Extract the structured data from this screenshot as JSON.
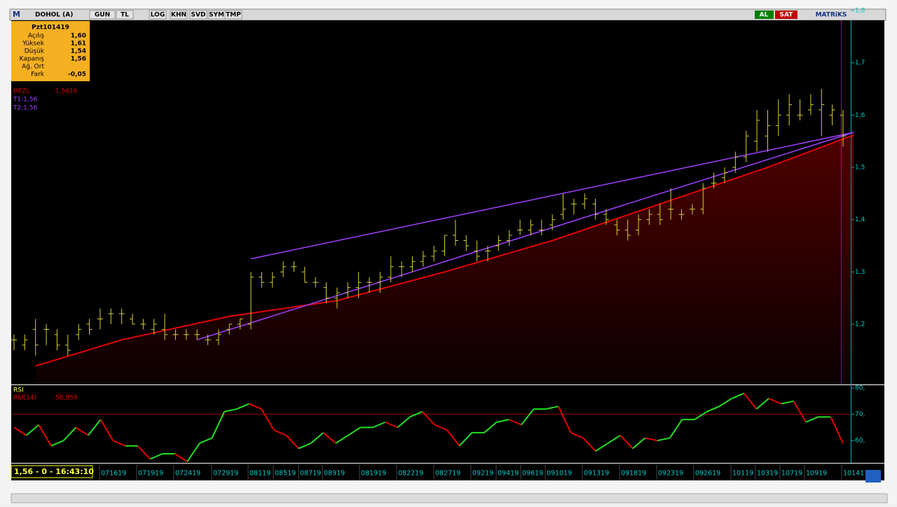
{
  "toolbar": {
    "logo": "M",
    "symbol": "DOHOL (A)",
    "buttons": [
      "GUN",
      "TL",
      "LOG",
      "KHN",
      "SVD",
      "SYM",
      "TMP"
    ],
    "buy": "AL",
    "sell": "SAT",
    "brand": "MATRiKS"
  },
  "info_panel": {
    "title": "Pzt101419",
    "rows": [
      {
        "label": "Açılış",
        "value": "1,60"
      },
      {
        "label": "Yüksek",
        "value": "1,61"
      },
      {
        "label": "Düşük",
        "value": "1,54"
      },
      {
        "label": "Kapanış",
        "value": "1,56"
      },
      {
        "label": "Ağ. Ort"
      },
      {
        "label": "Fark",
        "value": "-0,05"
      }
    ]
  },
  "status": "1,56 - 0 - 16:43:10",
  "chart_data": [
    {
      "type": "ohlc",
      "color": "#d8d030",
      "legend": [
        {
          "text": "HEZL",
          "readout": ":1,5616",
          "color": "#e00000"
        },
        {
          "text": "T1:1,56",
          "color": "#a040ff"
        },
        {
          "text": "T2:1,56",
          "color": "#a040ff"
        }
      ],
      "x_labels": [
        "071619",
        "071919",
        "072419",
        "072919",
        "08119",
        "08519",
        "08719",
        "08919",
        "081919",
        "082219",
        "082719",
        "09219",
        "09419",
        "09619",
        "091019",
        "091319",
        "091819",
        "092319",
        "092619",
        "10119",
        "10319",
        "10719",
        "10919",
        "10141"
      ],
      "xlim": [
        0,
        78
      ],
      "open": [
        1.17,
        1.16,
        1.19,
        1.19,
        1.18,
        1.16,
        1.18,
        1.2,
        1.21,
        1.22,
        1.22,
        1.21,
        1.2,
        1.19,
        1.19,
        1.18,
        1.18,
        1.18,
        1.17,
        1.17,
        1.19,
        1.2,
        1.2,
        1.29,
        1.28,
        1.3,
        1.31,
        1.3,
        1.28,
        1.27,
        1.25,
        1.26,
        1.27,
        1.28,
        1.28,
        1.29,
        1.31,
        1.31,
        1.32,
        1.33,
        1.34,
        1.37,
        1.36,
        1.34,
        1.34,
        1.35,
        1.36,
        1.38,
        1.38,
        1.38,
        1.39,
        1.41,
        1.43,
        1.43,
        1.43,
        1.41,
        1.39,
        1.38,
        1.38,
        1.4,
        1.41,
        1.42,
        1.41,
        1.42,
        1.42,
        1.47,
        1.48,
        1.5,
        1.52,
        1.55,
        1.56,
        1.58,
        1.6,
        1.6,
        1.61,
        1.61,
        1.6,
        1.6
      ],
      "high": [
        1.18,
        1.18,
        1.21,
        1.2,
        1.19,
        1.18,
        1.2,
        1.21,
        1.23,
        1.23,
        1.23,
        1.22,
        1.21,
        1.21,
        1.22,
        1.19,
        1.19,
        1.19,
        1.18,
        1.19,
        1.2,
        1.21,
        1.3,
        1.3,
        1.3,
        1.32,
        1.32,
        1.31,
        1.29,
        1.28,
        1.27,
        1.28,
        1.3,
        1.29,
        1.3,
        1.33,
        1.32,
        1.33,
        1.34,
        1.35,
        1.37,
        1.4,
        1.37,
        1.36,
        1.35,
        1.37,
        1.38,
        1.4,
        1.4,
        1.4,
        1.41,
        1.45,
        1.44,
        1.45,
        1.44,
        1.42,
        1.4,
        1.4,
        1.41,
        1.42,
        1.43,
        1.46,
        1.42,
        1.43,
        1.47,
        1.49,
        1.5,
        1.53,
        1.57,
        1.61,
        1.61,
        1.63,
        1.64,
        1.63,
        1.64,
        1.65,
        1.62,
        1.61
      ],
      "low": [
        1.15,
        1.15,
        1.14,
        1.16,
        1.15,
        1.14,
        1.17,
        1.18,
        1.19,
        1.2,
        1.2,
        1.2,
        1.19,
        1.18,
        1.17,
        1.17,
        1.17,
        1.17,
        1.16,
        1.16,
        1.18,
        1.19,
        1.19,
        1.27,
        1.27,
        1.29,
        1.3,
        1.28,
        1.27,
        1.24,
        1.23,
        1.25,
        1.25,
        1.26,
        1.26,
        1.28,
        1.29,
        1.3,
        1.31,
        1.32,
        1.33,
        1.35,
        1.34,
        1.32,
        1.32,
        1.34,
        1.35,
        1.37,
        1.37,
        1.37,
        1.38,
        1.4,
        1.41,
        1.42,
        1.4,
        1.39,
        1.37,
        1.36,
        1.37,
        1.39,
        1.39,
        1.4,
        1.4,
        1.41,
        1.41,
        1.46,
        1.47,
        1.49,
        1.51,
        1.53,
        1.53,
        1.56,
        1.58,
        1.59,
        1.6,
        1.56,
        1.58,
        1.54
      ],
      "close": [
        1.17,
        1.17,
        1.16,
        1.19,
        1.16,
        1.15,
        1.19,
        1.19,
        1.21,
        1.22,
        1.22,
        1.2,
        1.2,
        1.2,
        1.18,
        1.18,
        1.18,
        1.18,
        1.17,
        1.18,
        1.2,
        1.21,
        1.29,
        1.28,
        1.29,
        1.31,
        1.31,
        1.28,
        1.28,
        1.25,
        1.26,
        1.27,
        1.28,
        1.28,
        1.29,
        1.31,
        1.31,
        1.32,
        1.33,
        1.34,
        1.37,
        1.36,
        1.35,
        1.33,
        1.34,
        1.36,
        1.37,
        1.38,
        1.39,
        1.38,
        1.4,
        1.42,
        1.43,
        1.44,
        1.41,
        1.4,
        1.38,
        1.37,
        1.4,
        1.41,
        1.4,
        1.42,
        1.41,
        1.42,
        1.46,
        1.47,
        1.49,
        1.52,
        1.56,
        1.59,
        1.58,
        1.6,
        1.62,
        1.6,
        1.62,
        1.62,
        1.61,
        1.56
      ],
      "lines": [
        {
          "name": "HEZL",
          "color": "#e00000",
          "x": [
            2,
            10,
            20,
            30,
            40,
            50,
            60,
            70,
            78
          ],
          "values": [
            1.12,
            1.17,
            1.215,
            1.245,
            1.3,
            1.36,
            1.43,
            1.5,
            1.562
          ]
        },
        {
          "name": "T1",
          "color": "#a040ff",
          "x": [
            22,
            78
          ],
          "values": [
            1.325,
            1.567
          ]
        },
        {
          "name": "T2",
          "color": "#a040ff",
          "x": [
            17,
            78
          ],
          "values": [
            1.17,
            1.567
          ]
        }
      ],
      "ylim": [
        1.086,
        1.78
      ],
      "yticks": [
        {
          "value": 1.2,
          "label": "1,2"
        },
        {
          "value": 1.3,
          "label": "1,3"
        },
        {
          "value": 1.4,
          "label": "1,4"
        },
        {
          "value": 1.5,
          "label": "1,5"
        },
        {
          "value": 1.6,
          "label": "1,6"
        },
        {
          "value": 1.7,
          "label": "1,7"
        },
        {
          "value": 1.8,
          "label": "1,8"
        }
      ]
    },
    {
      "type": "line",
      "title": "RSI",
      "up_color": "#20e020",
      "down_color": "#e00000",
      "series": [
        {
          "name": "RSI(14)",
          "readout": ":58,959",
          "color": "#e00000",
          "values": [
            65,
            62,
            66,
            58,
            60,
            65,
            62,
            68,
            60,
            58,
            58,
            53,
            55,
            55,
            52,
            59,
            61,
            71,
            72,
            74,
            72,
            64,
            62,
            57,
            59,
            63,
            59,
            62,
            65,
            65,
            67,
            65,
            69,
            71,
            66,
            64,
            58,
            63,
            63,
            67,
            68,
            66,
            72,
            72,
            73,
            63,
            61,
            56,
            59,
            62,
            57,
            61,
            60,
            61,
            68,
            68,
            71,
            73,
            76,
            78,
            72,
            76,
            74,
            75,
            67,
            69,
            69,
            58.959
          ]
        }
      ],
      "hline": {
        "value": 70,
        "color": "#900000"
      },
      "ylim": [
        51.8,
        80.8
      ],
      "yticks": [
        {
          "value": 60,
          "label": "60,"
        },
        {
          "value": 70,
          "label": "70,"
        },
        {
          "value": 80,
          "label": "80,"
        }
      ]
    }
  ]
}
